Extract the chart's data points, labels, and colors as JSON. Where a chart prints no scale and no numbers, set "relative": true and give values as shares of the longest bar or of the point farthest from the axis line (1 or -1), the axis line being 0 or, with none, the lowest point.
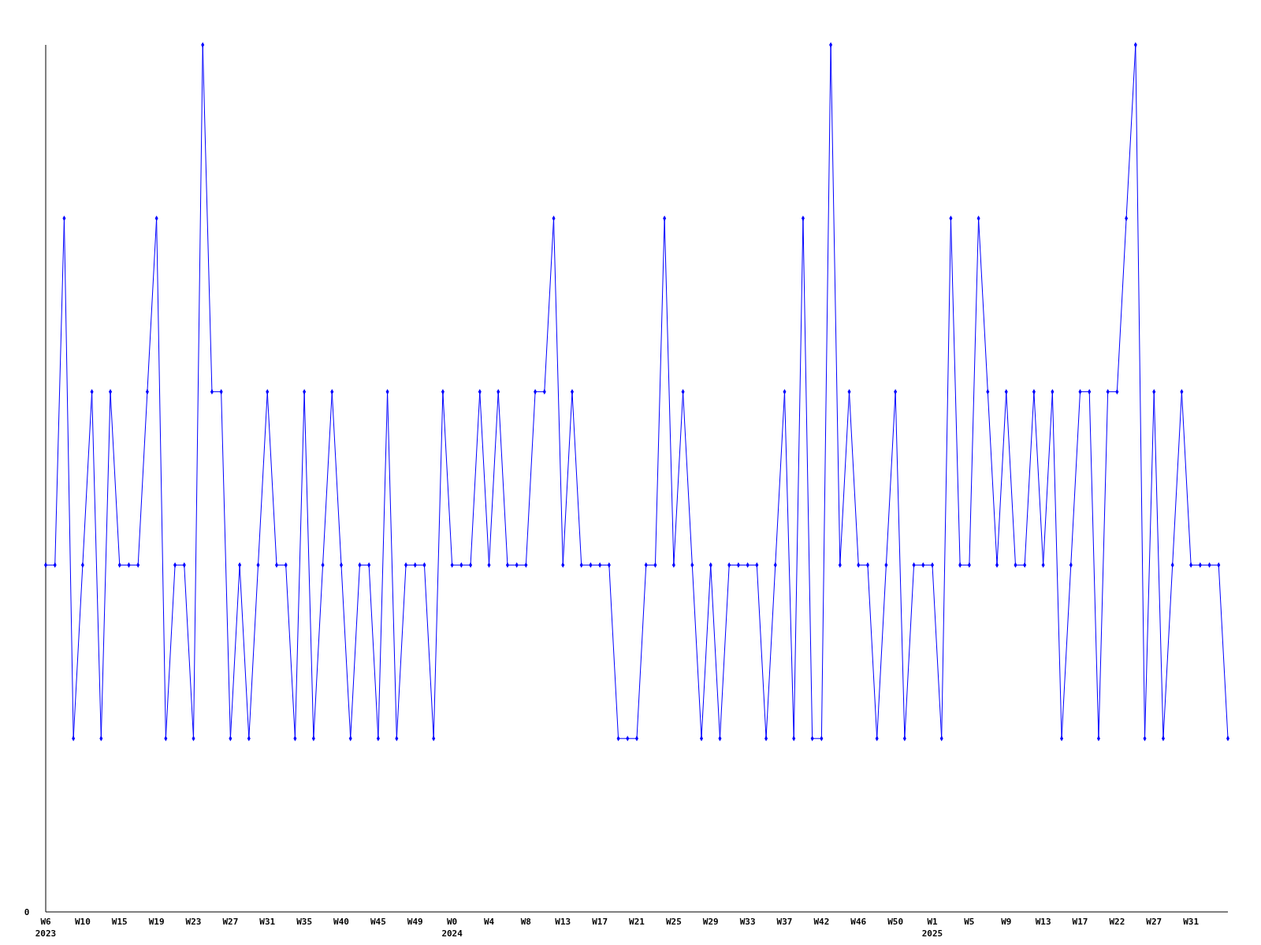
{
  "chart_data": {
    "type": "line",
    "relative": true,
    "marker": "diamond",
    "line_style": "solid",
    "annotations": [
      "0"
    ],
    "categories": [
      "W6\n2023",
      null,
      null,
      null,
      "W10",
      null,
      null,
      null,
      "W15",
      null,
      null,
      null,
      "W19",
      null,
      null,
      null,
      "W23",
      null,
      null,
      null,
      "W27",
      null,
      null,
      null,
      "W31",
      null,
      null,
      null,
      "W35",
      null,
      null,
      null,
      "W40",
      null,
      null,
      null,
      "W45",
      null,
      null,
      null,
      "W49",
      null,
      null,
      null,
      "W0\n2024",
      null,
      null,
      null,
      "W4",
      null,
      null,
      null,
      "W8",
      null,
      null,
      null,
      "W13",
      null,
      null,
      null,
      "W17",
      null,
      null,
      null,
      "W21",
      null,
      null,
      null,
      "W25",
      null,
      null,
      null,
      "W29",
      null,
      null,
      null,
      "W33",
      null,
      null,
      null,
      "W37",
      null,
      null,
      null,
      "W42",
      null,
      null,
      null,
      "W46",
      null,
      null,
      null,
      "W50",
      null,
      null,
      null,
      "W1\n2025",
      null,
      null,
      null,
      "W5",
      null,
      null,
      null,
      "W9",
      null,
      null,
      null,
      "W13",
      null,
      null,
      null,
      "W17",
      null,
      null,
      null,
      "W22",
      null,
      null,
      null,
      "W27",
      null,
      null,
      null,
      "W31",
      null,
      null,
      null,
      null
    ],
    "series": [
      {
        "color": "#0000ff",
        "values": [
          0.4,
          0.4,
          0.8,
          0.2,
          0.4,
          0.6,
          0.2,
          0.6,
          0.4,
          0.4,
          0.4,
          0.6,
          0.8,
          0.2,
          0.4,
          0.4,
          0.2,
          1,
          0.6,
          0.6,
          0.2,
          0.4,
          0.2,
          0.4,
          0.6,
          0.4,
          0.4,
          0.2,
          0.6,
          0.2,
          0.4,
          0.6,
          0.4,
          0.2,
          0.4,
          0.4,
          0.2,
          0.6,
          0.2,
          0.4,
          0.4,
          0.4,
          0.2,
          0.6,
          0.4,
          0.4,
          0.4,
          0.6,
          0.4,
          0.6,
          0.4,
          0.4,
          0.4,
          0.6,
          0.6,
          0.8,
          0.4,
          0.6,
          0.4,
          0.4,
          0.4,
          0.4,
          0.2,
          0.2,
          0.2,
          0.4,
          0.4,
          0.8,
          0.4,
          0.6,
          0.4,
          0.2,
          0.4,
          0.2,
          0.4,
          0.4,
          0.4,
          0.4,
          0.2,
          0.4,
          0.6,
          0.2,
          0.8,
          0.2,
          0.2,
          1,
          0.4,
          0.6,
          0.4,
          0.4,
          0.2,
          0.4,
          0.6,
          0.2,
          0.4,
          0.4,
          0.4,
          0.2,
          0.8,
          0.4,
          0.4,
          0.8,
          0.6,
          0.4,
          0.6,
          0.4,
          0.4,
          0.6,
          0.4,
          0.6,
          0.2,
          0.4,
          0.6,
          0.6,
          0.2,
          0.6,
          0.6,
          0.8,
          1,
          0.2,
          0.6,
          0.2,
          0.4,
          0.6,
          0.4,
          0.4,
          0.4,
          0.4,
          0.2
        ]
      }
    ]
  }
}
